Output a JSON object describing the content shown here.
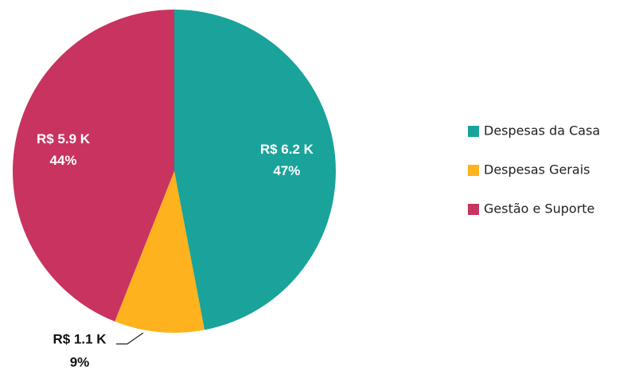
{
  "chart_data": {
    "type": "pie",
    "categories": [
      "Despesas da Casa",
      "Despesas Gerais",
      "Gestão e Suporte"
    ],
    "values": [
      47,
      9,
      44
    ],
    "value_labels": [
      "47%",
      "9%",
      "44%"
    ],
    "amounts": [
      6200,
      1100,
      5900
    ],
    "amount_labels": [
      "R$ 6.2 K",
      "R$ 1.1 K",
      "R$ 5.9 K"
    ],
    "colors": [
      "#19a39a",
      "#fdb21e",
      "#c9335f"
    ],
    "legend": "right"
  }
}
